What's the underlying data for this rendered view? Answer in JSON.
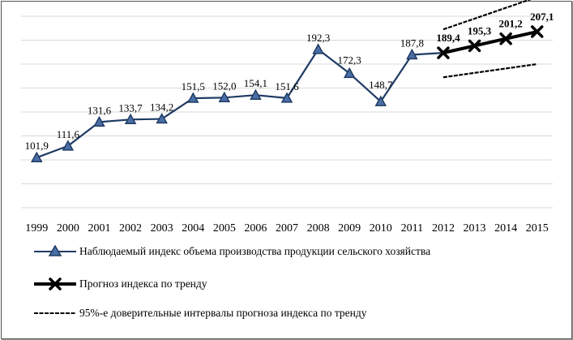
{
  "chart_data": {
    "type": "line",
    "title": "",
    "xlabel": "",
    "ylabel": "",
    "ylim": [
      60,
      220
    ],
    "grid": true,
    "legend_position": "bottom",
    "categories": [
      "1999",
      "2000",
      "2001",
      "2002",
      "2003",
      "2004",
      "2005",
      "2006",
      "2007",
      "2008",
      "2009",
      "2010",
      "2011",
      "2012",
      "2013",
      "2014",
      "2015"
    ],
    "series": [
      {
        "name": "Наблюдаемый индекс объема производства продукции сельского хозяйства",
        "color": "#1f3b64",
        "marker": "triangle",
        "x": [
          "1999",
          "2000",
          "2001",
          "2002",
          "2003",
          "2004",
          "2005",
          "2006",
          "2007",
          "2008",
          "2009",
          "2010",
          "2011",
          "2012"
        ],
        "values": [
          101.9,
          111.6,
          131.6,
          133.7,
          134.2,
          151.5,
          152.0,
          154.1,
          151.6,
          192.3,
          172.3,
          148.7,
          187.8,
          189.4
        ],
        "labels": [
          "101,9",
          "111,6",
          "131,6",
          "133,7",
          "134,2",
          "151,5",
          "152,0",
          "154,1",
          "151,6",
          "192,3",
          "172,3",
          "148,7",
          "187,8"
        ]
      },
      {
        "name": "Прогноз индекса по тренду",
        "color": "#000000",
        "marker": "x",
        "x": [
          "2012",
          "2013",
          "2014",
          "2015"
        ],
        "values": [
          189.4,
          195.3,
          201.2,
          207.1
        ],
        "labels": [
          "189,4",
          "195,3",
          "201,2",
          "207,1"
        ]
      },
      {
        "name": "95%-е доверительные интервалы прогноза индекса по тренду",
        "color": "#000000",
        "style": "dashed",
        "upper": {
          "x": [
            "2012",
            "2015"
          ],
          "values": [
            209,
            236
          ]
        },
        "lower": {
          "x": [
            "2012",
            "2015"
          ],
          "values": [
            169,
            180
          ]
        }
      }
    ]
  }
}
